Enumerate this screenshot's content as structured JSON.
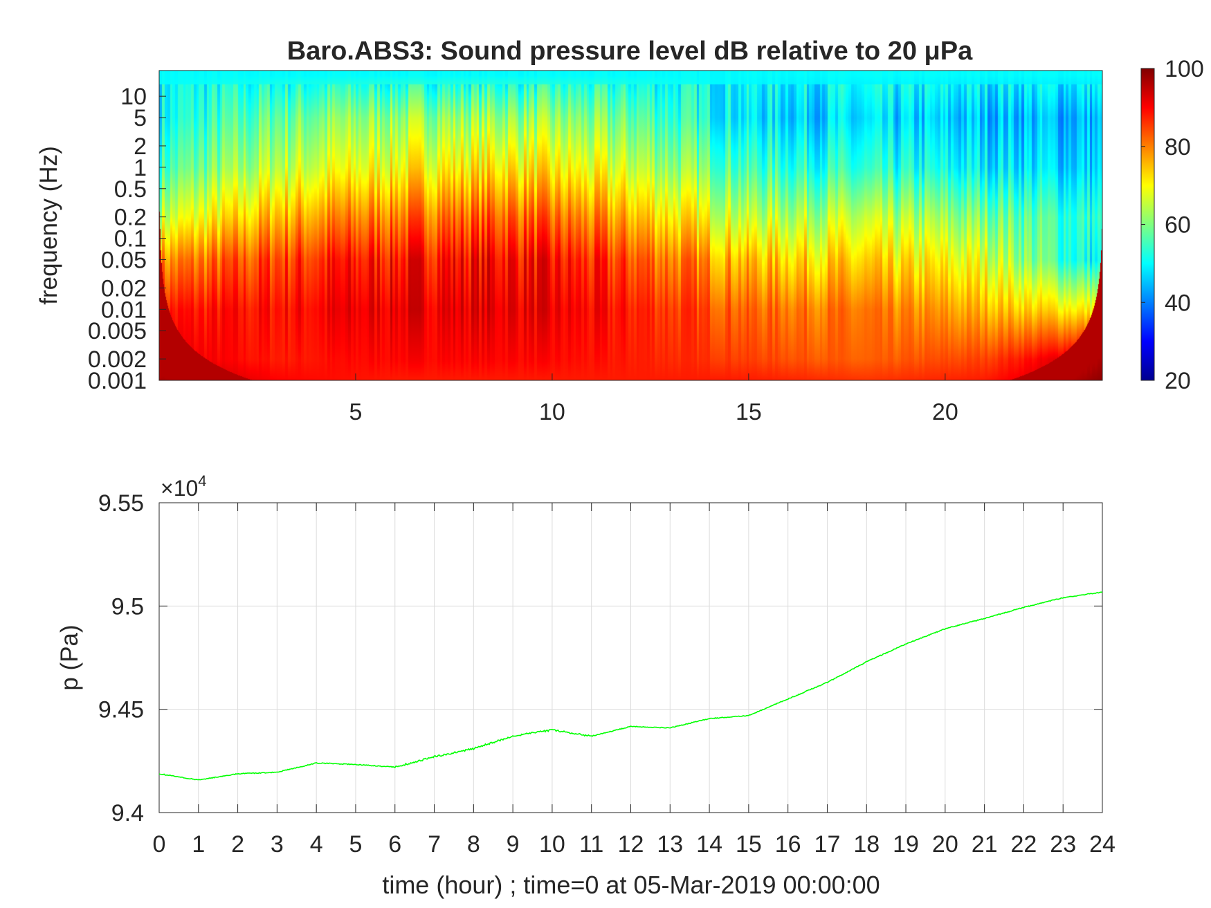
{
  "chart_data": [
    {
      "type": "heatmap",
      "title": "Baro.ABS3: Sound pressure level dB relative to 20 μPa",
      "xlabel": "",
      "ylabel": "frequency (Hz)",
      "xlim": [
        0,
        24
      ],
      "ylim_hz": [
        0.001,
        23
      ],
      "yscale": "log",
      "xticks": [
        5,
        10,
        15,
        20
      ],
      "xtick_labels": [
        "5",
        "10",
        "15",
        "20"
      ],
      "yticks": [
        10,
        5,
        2,
        1,
        0.5,
        0.2,
        0.1,
        0.05,
        0.02,
        0.01,
        0.005,
        0.002,
        0.001
      ],
      "ytick_labels": [
        "10",
        "5",
        "2",
        "1",
        "0.5",
        "0.2",
        "0.1",
        "0.05",
        "0.02",
        "0.01",
        "0.005",
        "0.002",
        "0.001"
      ],
      "colormap": "jet",
      "clim": [
        20,
        100
      ],
      "colorbar_ticks": [
        20,
        40,
        60,
        80,
        100
      ],
      "colorbar_tick_labels": [
        "20",
        "40",
        "60",
        "80",
        "100"
      ],
      "colorbar_placement": "right",
      "approx_grid": {
        "time_hours": [
          0,
          3,
          6,
          9,
          12,
          15,
          18,
          21,
          24
        ],
        "freq_hz": [
          20,
          5,
          1,
          0.2,
          0.05,
          0.01,
          0.002,
          0.001
        ],
        "db": [
          [
            50,
            50,
            50,
            50,
            50,
            50,
            50,
            50,
            50
          ],
          [
            50,
            58,
            62,
            62,
            58,
            48,
            46,
            45,
            44
          ],
          [
            55,
            65,
            70,
            72,
            66,
            55,
            52,
            49,
            46
          ],
          [
            65,
            76,
            81,
            83,
            76,
            65,
            64,
            60,
            52
          ],
          [
            78,
            85,
            89,
            90,
            84,
            75,
            72,
            68,
            48
          ],
          [
            88,
            89,
            92,
            92,
            88,
            82,
            80,
            76,
            70
          ],
          [
            92,
            88,
            90,
            90,
            88,
            85,
            82,
            85,
            96
          ],
          [
            97,
            90,
            88,
            88,
            88,
            88,
            86,
            88,
            99
          ]
        ]
      }
    },
    {
      "type": "line",
      "title": "",
      "xlabel": "time (hour) ; time=0 at 05-Mar-2019 00:00:00",
      "ylabel": "p (Pa)",
      "y_exponent_label": "×10",
      "y_exponent_power": "4",
      "xlim": [
        0,
        24
      ],
      "ylim": [
        9.4,
        9.55
      ],
      "xticks": [
        0,
        1,
        2,
        3,
        4,
        5,
        6,
        7,
        8,
        9,
        10,
        11,
        12,
        13,
        14,
        15,
        16,
        17,
        18,
        19,
        20,
        21,
        22,
        23,
        24
      ],
      "xtick_labels": [
        "0",
        "1",
        "2",
        "3",
        "4",
        "5",
        "6",
        "7",
        "8",
        "9",
        "10",
        "11",
        "12",
        "13",
        "14",
        "15",
        "16",
        "17",
        "18",
        "19",
        "20",
        "21",
        "22",
        "23",
        "24"
      ],
      "yticks": [
        9.4,
        9.45,
        9.5,
        9.55
      ],
      "ytick_labels": [
        "9.4",
        "9.45",
        "9.5",
        "9.55"
      ],
      "grid": true,
      "series": [
        {
          "name": "p",
          "color": "#00ff00",
          "x": [
            0,
            1,
            2,
            3,
            4,
            5,
            6,
            7,
            8,
            9,
            10,
            11,
            12,
            13,
            14,
            15,
            16,
            17,
            18,
            19,
            20,
            21,
            22,
            23,
            24
          ],
          "y": [
            9.4188,
            9.4158,
            9.4188,
            9.4195,
            9.424,
            9.4233,
            9.422,
            9.427,
            9.431,
            9.437,
            9.44,
            9.437,
            9.4417,
            9.441,
            9.4455,
            9.447,
            9.455,
            9.463,
            9.473,
            9.4816,
            9.489,
            9.494,
            9.4993,
            9.504,
            9.5068
          ]
        }
      ]
    }
  ]
}
